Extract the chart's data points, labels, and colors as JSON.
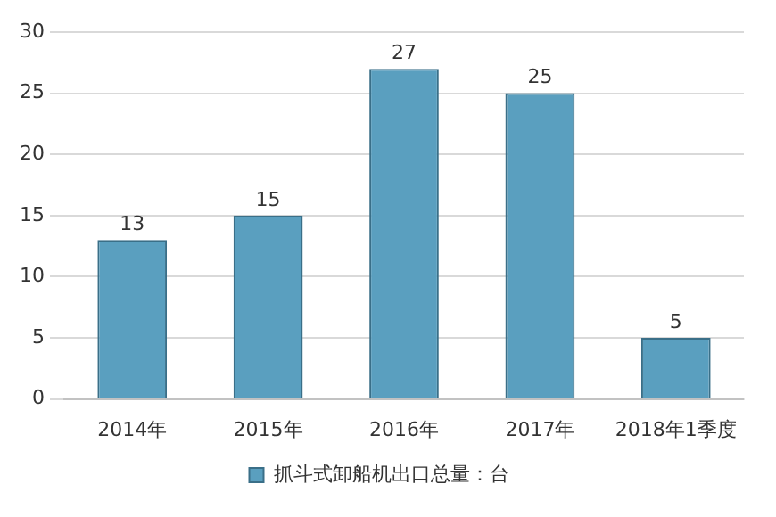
{
  "chart_data": {
    "type": "bar",
    "categories": [
      "2014年",
      "2015年",
      "2016年",
      "2017年",
      "2018年1季度"
    ],
    "series": [
      {
        "name": "抓斗式卸船机出口总量：台",
        "color": "#5a9fbf",
        "values": [
          13,
          15,
          27,
          25,
          5
        ]
      }
    ],
    "ylim": [
      0,
      30
    ],
    "yticks": [
      0,
      5,
      10,
      15,
      20,
      25,
      30
    ],
    "grid": "y",
    "legend": "bottom",
    "data_labels": true
  }
}
